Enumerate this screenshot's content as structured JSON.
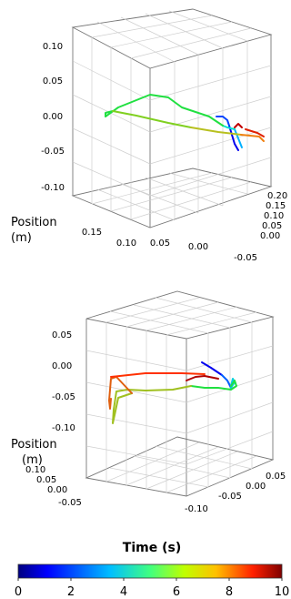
{
  "chart_data": [
    {
      "type": "line",
      "title": "",
      "position_label_line1": "Position",
      "position_label_line2": "(m)",
      "z_ticks": [
        "0.10",
        "0.05",
        "0.00",
        "-0.05",
        "-0.10"
      ],
      "x_ticks": [
        "0.15",
        "0.10",
        "0.05",
        "0.00",
        "-0.05"
      ],
      "y_ticks": [
        "0.20",
        "0.15",
        "0.10",
        "0.05",
        "0.00"
      ],
      "grid": true,
      "series": [
        {
          "color_by": "time",
          "points": [
            {
              "t": 0.0,
              "x": 0.01,
              "y": 0.12,
              "z": -0.05
            },
            {
              "t": 0.5,
              "x": 0.01,
              "y": 0.11,
              "z": -0.03
            },
            {
              "t": 1.0,
              "x": 0.015,
              "y": 0.1,
              "z": -0.01
            },
            {
              "t": 1.5,
              "x": 0.02,
              "y": 0.09,
              "z": -0.005
            },
            {
              "t": 2.0,
              "x": 0.03,
              "y": 0.08,
              "z": 0.0
            },
            {
              "t": 3.0,
              "x": 0.06,
              "y": 0.07,
              "z": 0.01
            },
            {
              "t": 4.0,
              "x": 0.1,
              "y": 0.05,
              "z": 0.02
            },
            {
              "t": 4.5,
              "x": 0.13,
              "y": 0.03,
              "z": 0.005
            },
            {
              "t": 5.0,
              "x": 0.12,
              "y": 0.03,
              "z": 0.0
            },
            {
              "t": 6.0,
              "x": 0.06,
              "y": 0.08,
              "z": -0.02
            },
            {
              "t": 7.0,
              "x": 0.0,
              "y": 0.12,
              "z": -0.03
            },
            {
              "t": 8.0,
              "x": -0.01,
              "y": 0.15,
              "z": -0.02
            },
            {
              "t": 9.0,
              "x": 0.0,
              "y": 0.16,
              "z": -0.01
            },
            {
              "t": 10.0,
              "x": 0.01,
              "y": 0.15,
              "z": -0.005
            }
          ]
        }
      ]
    },
    {
      "type": "line",
      "title": "",
      "position_label_line1": "Position",
      "position_label_line2": "(m)",
      "z_ticks": [
        "0.05",
        "0.00",
        "-0.05",
        "-0.10"
      ],
      "left_ticks": [
        "0.10",
        "0.05",
        "0.00",
        "-0.05"
      ],
      "right_ticks": [
        "-0.10",
        "-0.05",
        "0.00",
        "0.05"
      ],
      "grid": true,
      "series": [
        {
          "color_by": "time",
          "points": [
            {
              "t": 0.0,
              "z": -0.02
            },
            {
              "t": 1.0,
              "z": -0.01
            },
            {
              "t": 2.0,
              "z": -0.02
            },
            {
              "t": 3.0,
              "z": -0.03
            },
            {
              "t": 4.0,
              "z": -0.04
            },
            {
              "t": 5.0,
              "z": -0.04
            },
            {
              "t": 6.0,
              "z": -0.05
            },
            {
              "t": 6.5,
              "z": -0.09
            },
            {
              "t": 7.0,
              "z": -0.05
            },
            {
              "t": 8.0,
              "z": -0.01
            },
            {
              "t": 9.0,
              "z": -0.01
            },
            {
              "t": 10.0,
              "z": -0.02
            }
          ]
        }
      ]
    }
  ],
  "colorbar": {
    "title": "Time (s)",
    "ticks": [
      "0",
      "2",
      "4",
      "6",
      "8",
      "10"
    ],
    "range": [
      0,
      10
    ],
    "colormap": "jet",
    "stops": [
      "#00007f",
      "#0000ff",
      "#00bfff",
      "#00ff80",
      "#80ff00",
      "#ffd000",
      "#ff4000",
      "#7f0000"
    ]
  }
}
